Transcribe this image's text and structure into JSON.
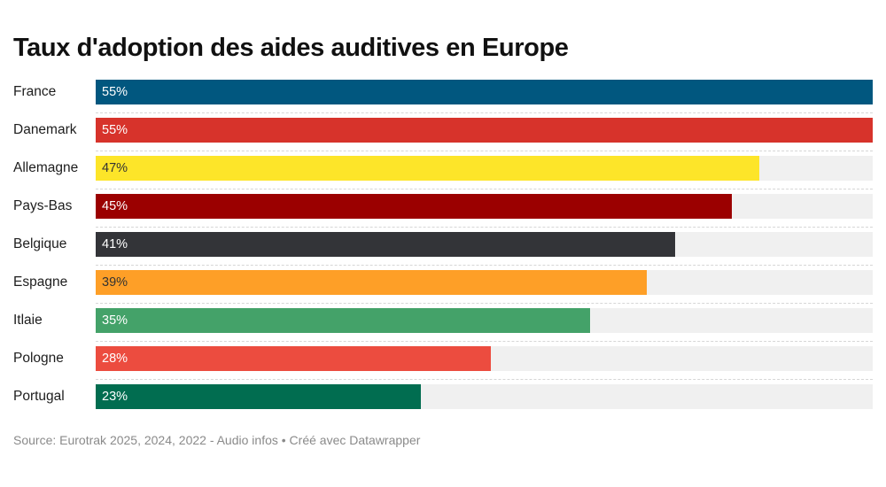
{
  "chart_data": {
    "type": "bar",
    "orientation": "horizontal",
    "title": "Taux d'adoption des aides auditives en Europe",
    "categories": [
      "France",
      "Danemark",
      "Allemagne",
      "Pays-Bas",
      "Belgique",
      "Espagne",
      "Itlaie",
      "Pologne",
      "Portugal"
    ],
    "values": [
      55,
      55,
      47,
      45,
      41,
      39,
      35,
      28,
      23
    ],
    "value_labels": [
      "55%",
      "55%",
      "47%",
      "45%",
      "41%",
      "39%",
      "35%",
      "28%",
      "23%"
    ],
    "colors": [
      "#01577f",
      "#d7332b",
      "#fde529",
      "#9b0000",
      "#333438",
      "#fe9f27",
      "#44a269",
      "#ec4c3f",
      "#016d50"
    ],
    "label_colors": [
      "#ffffff",
      "#ffffff",
      "#333333",
      "#ffffff",
      "#ffffff",
      "#333333",
      "#ffffff",
      "#ffffff",
      "#ffffff"
    ],
    "xlim": [
      0,
      55
    ],
    "track_color": "#f0f0f0",
    "grid": false,
    "legend": "none"
  },
  "footer": "Source: Eurotrak 2025, 2024, 2022 - Audio infos • Créé avec Datawrapper"
}
